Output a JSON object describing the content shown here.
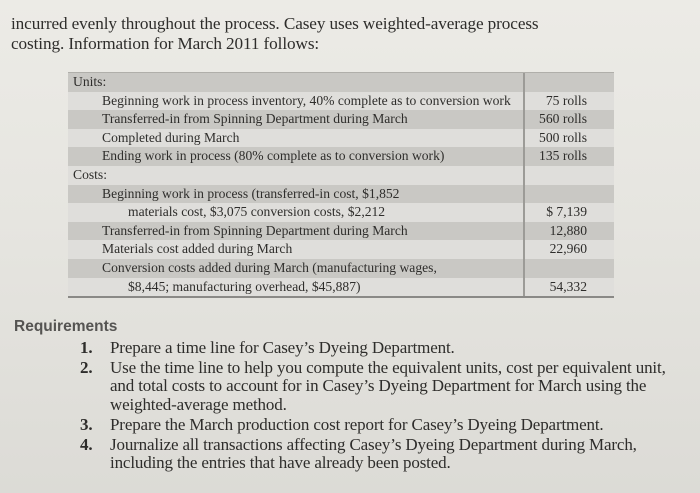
{
  "intro": {
    "lines": [
      "incurred evenly throughout the process. Casey uses weighted-average process",
      "costing. Information for March 2011 follows:"
    ]
  },
  "table": {
    "rows": [
      {
        "label": "Units:",
        "value": "",
        "indent": 0,
        "shade": "dark"
      },
      {
        "label": "Beginning work in process inventory, 40% complete as to conversion work",
        "value": "75 rolls",
        "indent": 1,
        "shade": "light"
      },
      {
        "label": "Transferred-in from Spinning Department during March",
        "value": "560 rolls",
        "indent": 1,
        "shade": "dark"
      },
      {
        "label": "Completed during March",
        "value": "500 rolls",
        "indent": 1,
        "shade": "light"
      },
      {
        "label": "Ending work in process (80% complete as to conversion work)",
        "value": "135 rolls",
        "indent": 1,
        "shade": "dark"
      },
      {
        "label": "Costs:",
        "value": "",
        "indent": 0,
        "shade": "light"
      },
      {
        "label": "Beginning work in process (transferred-in cost, $1,852",
        "value": "",
        "indent": 1,
        "shade": "dark"
      },
      {
        "label": "materials cost, $3,075 conversion costs, $2,212",
        "value": "$ 7,139",
        "indent": 2,
        "shade": "light"
      },
      {
        "label": "Transferred-in from Spinning Department during March",
        "value": "12,880",
        "indent": 1,
        "shade": "dark"
      },
      {
        "label": "Materials cost added during March",
        "value": "22,960",
        "indent": 1,
        "shade": "light"
      },
      {
        "label": "Conversion costs added during March (manufacturing wages,",
        "value": "",
        "indent": 1,
        "shade": "dark"
      },
      {
        "label": "$8,445; manufacturing overhead, $45,887)",
        "value": "54,332",
        "indent": 2,
        "shade": "light"
      }
    ]
  },
  "requirements": {
    "title": "Requirements",
    "items": [
      {
        "num": "1.",
        "text": "Prepare a time line for Casey’s Dyeing Department."
      },
      {
        "num": "2.",
        "text": "Use the time line to help you compute the equivalent units, cost per equivalent unit, and total costs to account for in Casey’s Dyeing Department for March using the weighted-average method."
      },
      {
        "num": "3.",
        "text": "Prepare the March production cost report for Casey’s Dyeing Department."
      },
      {
        "num": "4.",
        "text": "Journalize all transactions affecting Casey’s Dyeing Department during March, including the entries that have already been posted."
      }
    ]
  }
}
